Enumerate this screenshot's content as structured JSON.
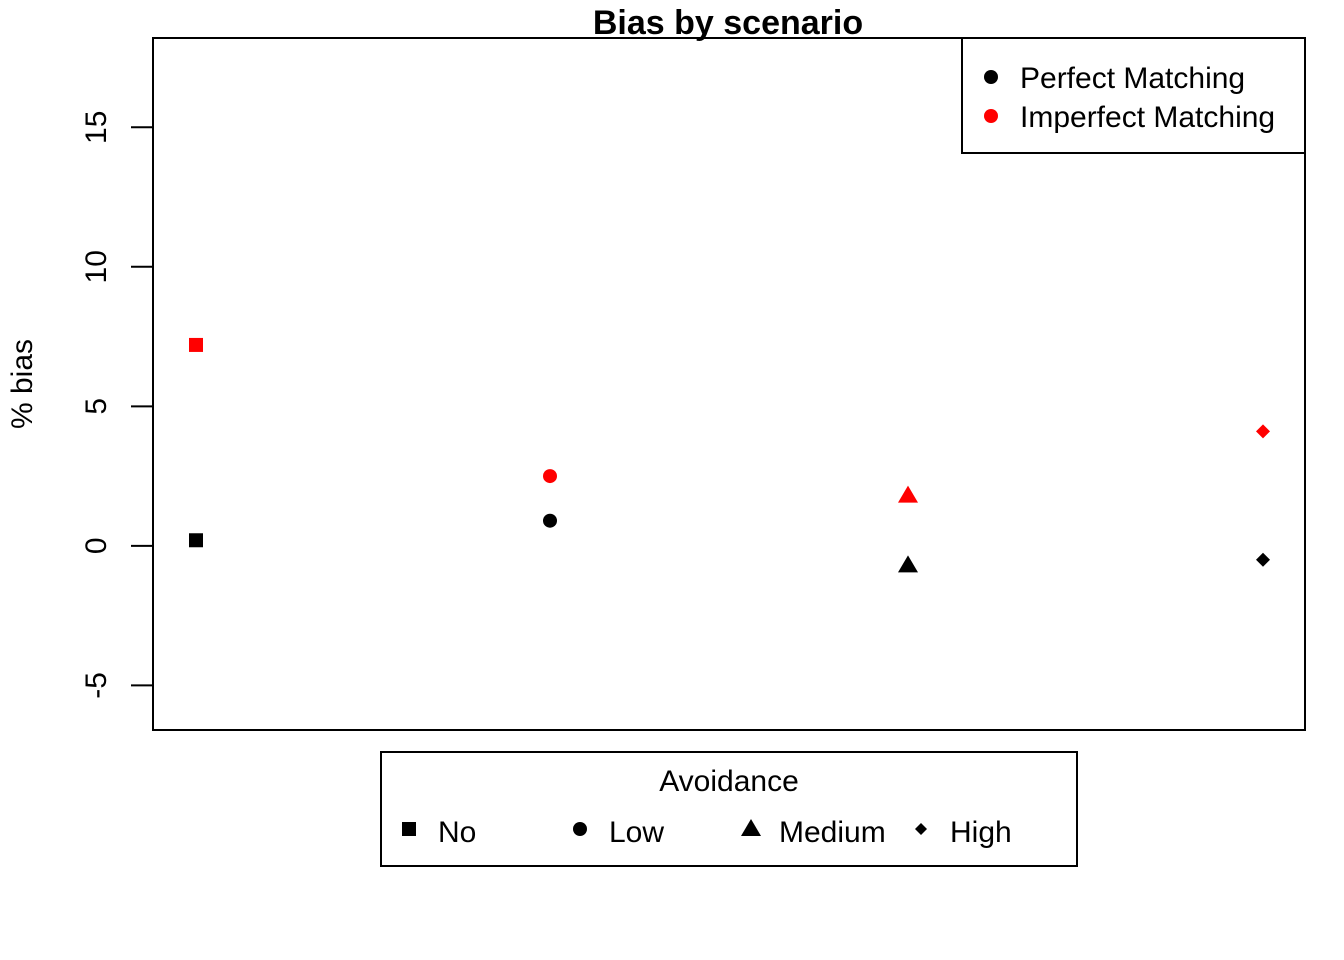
{
  "chart_data": {
    "type": "scatter",
    "title": "Bias by scenario",
    "xlabel": "",
    "ylabel": "% bias",
    "ylim": [
      -6.6,
      18.2
    ],
    "yticks": [
      -5,
      0,
      5,
      10,
      15
    ],
    "grid": false,
    "categories": [
      "No",
      "Low",
      "Medium",
      "High"
    ],
    "series": [
      {
        "name": "Perfect Matching",
        "color": "#000000",
        "values": [
          0.2,
          0.9,
          -0.7,
          -0.5
        ]
      },
      {
        "name": "Imperfect Matching",
        "color": "#ff0000",
        "values": [
          7.2,
          2.5,
          1.8,
          4.1
        ]
      }
    ],
    "series_legend": {
      "placement": "top-right"
    },
    "shape_legend": {
      "title": "Avoidance",
      "placement": "bottom-center",
      "items": [
        {
          "label": "No",
          "shape": "square"
        },
        {
          "label": "Low",
          "shape": "circle"
        },
        {
          "label": "Medium",
          "shape": "triangle"
        },
        {
          "label": "High",
          "shape": "diamond"
        }
      ]
    }
  }
}
